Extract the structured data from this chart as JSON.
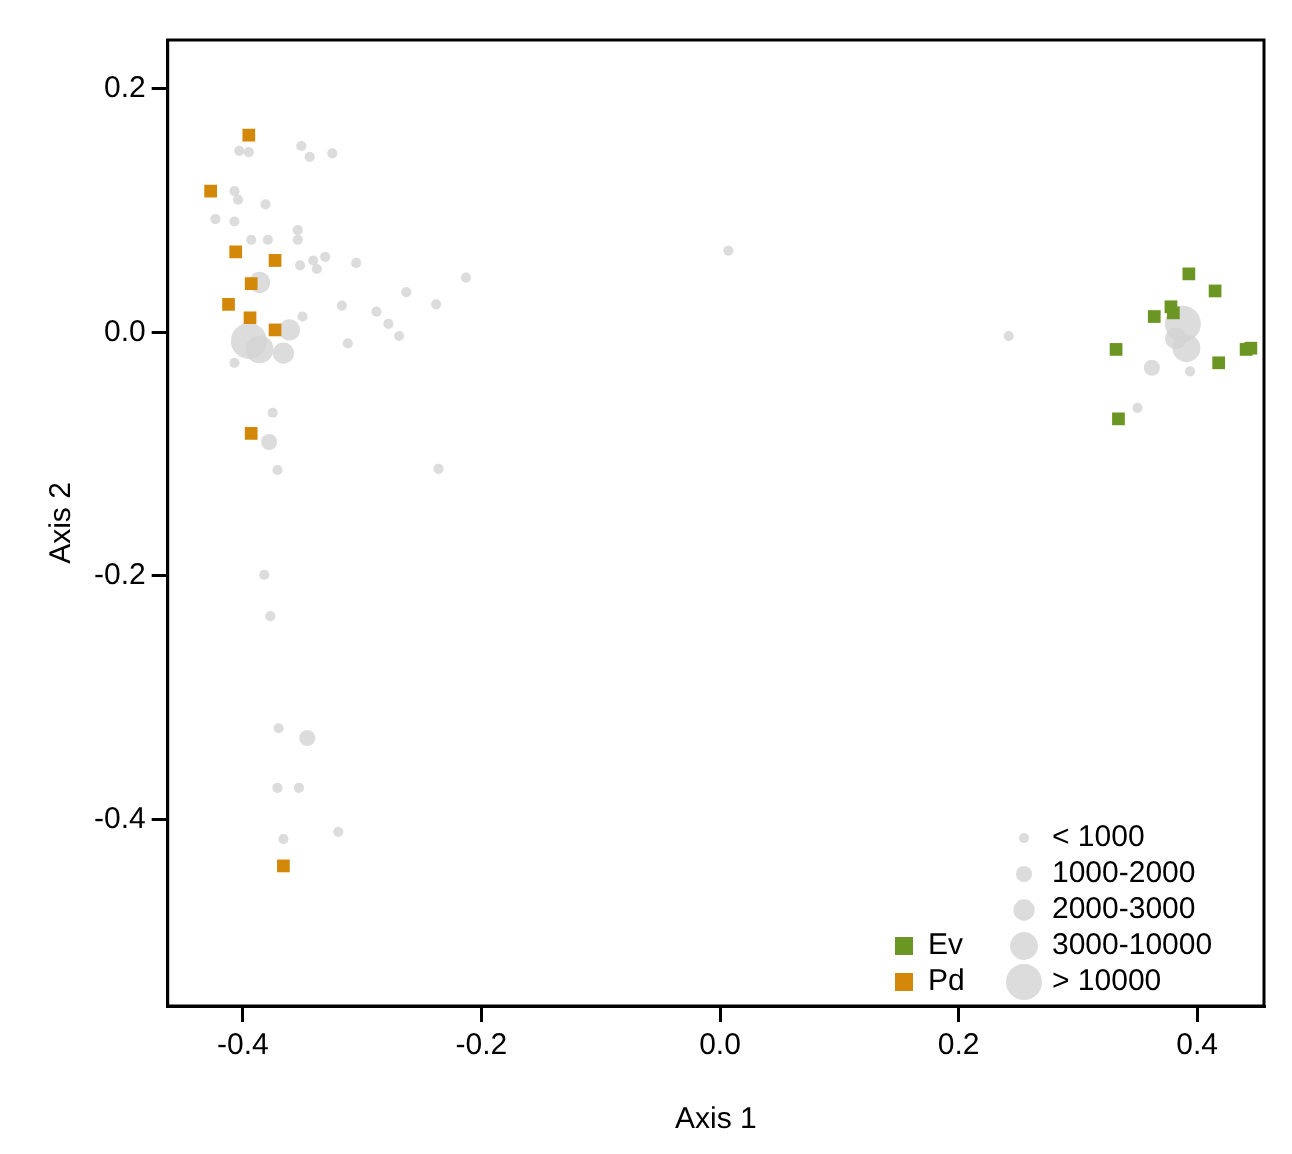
{
  "chart_data": {
    "type": "scatter",
    "xlabel": "Axis 1",
    "ylabel": "Axis 2",
    "xlim": [
      -0.463,
      0.456
    ],
    "ylim": [
      -0.553,
      0.24
    ],
    "xticks": [
      -0.4,
      -0.2,
      {
        "value": 0,
        "label": "0.0"
      },
      0.2,
      0.4
    ],
    "yticks": [
      -0.4,
      -0.2,
      {
        "value": 0,
        "label": "0.0"
      },
      0.2
    ],
    "grid": false,
    "legend": "bottom right",
    "series": [
      {
        "name": "< 1000",
        "type": "bubble",
        "marker": "circle",
        "color": "#d3d3d3",
        "x": [
          -0.403,
          -0.395,
          -0.351,
          -0.344,
          -0.325,
          -0.407,
          -0.404,
          -0.381,
          -0.423,
          -0.407,
          -0.354,
          -0.354,
          -0.379,
          -0.393,
          -0.341,
          -0.331,
          -0.338,
          -0.352,
          -0.305,
          -0.213,
          -0.263,
          -0.238,
          -0.317,
          -0.288,
          -0.278,
          -0.269,
          -0.35,
          -0.312,
          -0.407,
          -0.375,
          -0.371,
          -0.236,
          0.007,
          0.242,
          -0.382,
          -0.377,
          -0.37,
          -0.371,
          -0.353,
          -0.366,
          -0.32,
          0.394,
          0.35
        ],
        "values": [
          0.149,
          0.148,
          0.153,
          0.144,
          0.147,
          0.116,
          0.109,
          0.105,
          0.093,
          0.091,
          0.084,
          0.076,
          0.076,
          0.076,
          0.059,
          0.062,
          0.052,
          0.055,
          0.057,
          0.045,
          0.033,
          0.023,
          0.022,
          0.017,
          0.007,
          -0.003,
          0.013,
          -0.009,
          -0.025,
          -0.066,
          -0.113,
          -0.112,
          0.067,
          -0.003,
          -0.199,
          -0.233,
          -0.325,
          -0.374,
          -0.374,
          -0.416,
          -0.41,
          -0.032,
          -0.062
        ],
        "sizes": [
          0.08,
          0.08,
          0.08,
          0.08,
          0.08,
          0.08,
          0.08,
          0.08,
          0.08,
          0.08,
          0.08,
          0.08,
          0.08,
          0.08,
          0.08,
          0.08,
          0.08,
          0.08,
          0.08,
          0.08,
          0.08,
          0.08,
          0.08,
          0.08,
          0.08,
          0.08,
          0.08,
          0.08,
          0.08,
          0.08,
          0.08,
          0.08,
          0.08,
          0.08,
          0.08,
          0.08,
          0.08,
          0.08,
          0.08,
          0.08,
          0.08,
          0.08,
          0.08
        ]
      },
      {
        "name": "1000-2000",
        "type": "bubble",
        "marker": "circle",
        "color": "#d3d3d3",
        "x": [
          -0.378,
          -0.346,
          0.362
        ],
        "values": [
          -0.09,
          -0.333,
          -0.029
        ],
        "sizes": [
          0.2,
          0.2,
          0.2
        ]
      },
      {
        "name": "2000-3000",
        "type": "bubble",
        "marker": "circle",
        "color": "#d3d3d3",
        "x": [
          -0.386,
          -0.361,
          -0.366,
          0.382
        ],
        "values": [
          0.041,
          0.002,
          -0.017,
          -0.005
        ],
        "sizes": [
          0.35,
          0.35,
          0.35,
          0.35
        ]
      },
      {
        "name": "3000-10000",
        "type": "bubble",
        "marker": "circle",
        "color": "#d3d3d3",
        "x": [
          -0.386,
          0.391
        ],
        "values": [
          -0.014,
          -0.013
        ],
        "sizes": [
          0.6,
          0.6
        ]
      },
      {
        "name": "> 10000",
        "type": "bubble",
        "marker": "circle",
        "color": "#d3d3d3",
        "x": [
          -0.395,
          0.388
        ],
        "values": [
          -0.007,
          0.007
        ],
        "sizes": [
          1,
          1
        ]
      },
      {
        "name": "Ev",
        "marker": "square",
        "color": "#6b9623",
        "x": [
          0.393,
          0.415,
          0.378,
          0.364,
          0.38,
          0.332,
          0.418,
          0.441,
          0.445,
          0.334
        ],
        "values": [
          0.048,
          0.034,
          0.021,
          0.013,
          0.016,
          -0.014,
          -0.025,
          -0.014,
          -0.013,
          -0.071
        ]
      },
      {
        "name": "Pd",
        "marker": "square",
        "color": "#d4880a",
        "x": [
          -0.395,
          -0.427,
          -0.406,
          -0.373,
          -0.393,
          -0.412,
          -0.394,
          -0.373,
          -0.393,
          -0.366
        ],
        "values": [
          0.162,
          0.116,
          0.066,
          0.059,
          0.04,
          0.023,
          0.012,
          0.002,
          -0.083,
          -0.438
        ]
      }
    ]
  }
}
